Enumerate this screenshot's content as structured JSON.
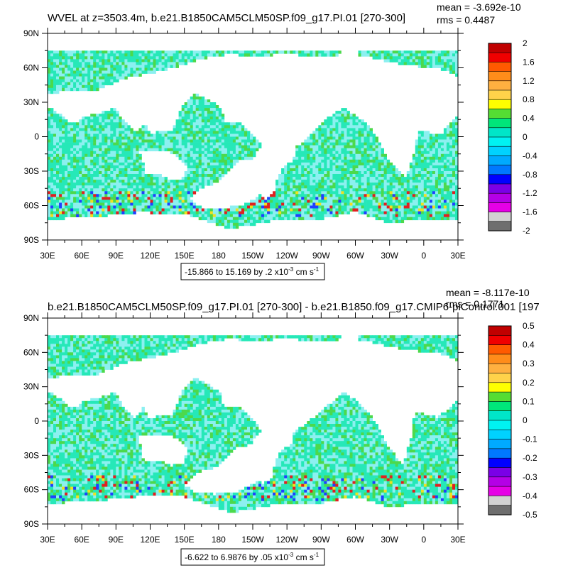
{
  "chart_data": [
    {
      "type": "heatmap",
      "title": "WVEL at z=3503.4m, b.e21.B1850CAM5CLM50SP.f09_g17.PI.01 [270-300]",
      "mean_label": "mean = -3.692e-10",
      "rms_label": "rms = 0.4487",
      "x_ticks": [
        "30E",
        "60E",
        "90E",
        "120E",
        "150E",
        "180",
        "150W",
        "120W",
        "90W",
        "60W",
        "30W",
        "0",
        "30E"
      ],
      "y_ticks": [
        "90N",
        "60N",
        "30N",
        "0",
        "30S",
        "60S",
        "90S"
      ],
      "xlim": [
        30,
        390
      ],
      "ylim": [
        -90,
        90
      ],
      "range_text": "-15.866 to 15.169 by .2 x10",
      "range_exp": "-3",
      "range_units": " cm s",
      "range_units_exp": "-1",
      "colorbar": {
        "labels": [
          "2",
          "1.6",
          "1.2",
          "0.8",
          "0.4",
          "0",
          "-0.4",
          "-0.8",
          "-1.2",
          "-1.6",
          "-2"
        ],
        "levels": [
          2,
          1.6,
          1.2,
          0.8,
          0.4,
          0,
          -0.4,
          -0.8,
          -1.2,
          -1.6,
          -2
        ]
      }
    },
    {
      "type": "heatmap",
      "title": "b.e21.B1850CAM5CLM50SP.f09_g17.PI.01 [270-300] - b.e21.B1850.f09_g17.CMIP6-piControl.001 [197",
      "mean_label": "mean = -8.117e-10",
      "rms_label": "rms = 0.1771",
      "x_ticks": [
        "30E",
        "60E",
        "90E",
        "120E",
        "150E",
        "180",
        "150W",
        "120W",
        "90W",
        "60W",
        "30W",
        "0",
        "30E"
      ],
      "y_ticks": [
        "90N",
        "60N",
        "30N",
        "0",
        "30S",
        "60S",
        "90S"
      ],
      "xlim": [
        30,
        390
      ],
      "ylim": [
        -90,
        90
      ],
      "range_text": "-6.622 to 6.9876 by .05 x10",
      "range_exp": "-3",
      "range_units": " cm s",
      "range_units_exp": "-1",
      "colorbar": {
        "labels": [
          "0.5",
          "0.4",
          "0.3",
          "0.2",
          "0.1",
          "0",
          "-0.1",
          "-0.2",
          "-0.3",
          "-0.4",
          "-0.5"
        ],
        "levels": [
          0.5,
          0.4,
          0.3,
          0.2,
          0.1,
          0,
          -0.1,
          -0.2,
          -0.3,
          -0.4,
          -0.5
        ]
      }
    }
  ],
  "colors": {
    "ocean_main": "#26e8b8",
    "ocean_alt": "#8cf0f0",
    "ocean_green": "#4cd94c",
    "positive": "#e02020",
    "negative": "#2040ff",
    "yellow": "#f0e020",
    "colorbar_swatches": [
      "#c00000",
      "#f00000",
      "#ff5a00",
      "#ff8c1a",
      "#ffb040",
      "#ffd24a",
      "#ffff00",
      "#55dd33",
      "#00e67a",
      "#00e6c8",
      "#00f2f2",
      "#00d2ff",
      "#00aaff",
      "#0078ff",
      "#0000ff",
      "#7a00e6",
      "#b400e6",
      "#e600e6",
      "#d2d2d2",
      "#6e6e6e"
    ]
  }
}
